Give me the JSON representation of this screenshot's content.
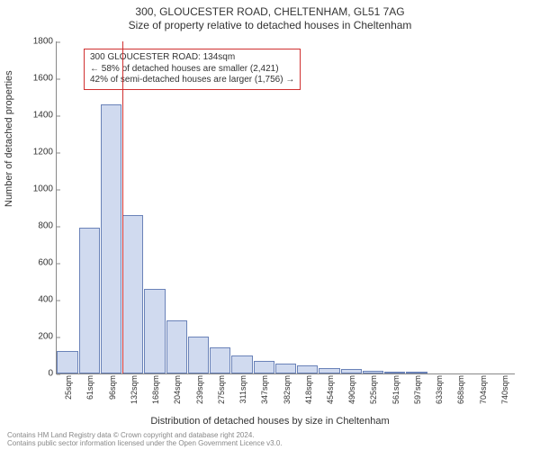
{
  "titles": {
    "main": "300, GLOUCESTER ROAD, CHELTENHAM, GL51 7AG",
    "sub": "Size of property relative to detached houses in Cheltenham"
  },
  "ylabel": "Number of detached properties",
  "xlabel": "Distribution of detached houses by size in Cheltenham",
  "chart": {
    "type": "histogram",
    "ylim": [
      0,
      1800
    ],
    "ytick_step": 200,
    "xcategories": [
      "25sqm",
      "61sqm",
      "96sqm",
      "132sqm",
      "168sqm",
      "204sqm",
      "239sqm",
      "275sqm",
      "311sqm",
      "347sqm",
      "382sqm",
      "418sqm",
      "454sqm",
      "490sqm",
      "525sqm",
      "561sqm",
      "597sqm",
      "633sqm",
      "668sqm",
      "704sqm",
      "740sqm"
    ],
    "values": [
      120,
      790,
      1460,
      860,
      460,
      290,
      200,
      140,
      100,
      70,
      55,
      45,
      30,
      25,
      15,
      12,
      10,
      0,
      0,
      0,
      0
    ],
    "bar_fill": "rgba(120,150,210,0.35)",
    "bar_border": "#6a82b8",
    "axis_color": "#888888",
    "background": "#ffffff",
    "marker_index": 3,
    "marker_color": "#d03030"
  },
  "annotation": {
    "line1": "300 GLOUCESTER ROAD: 134sqm",
    "line2": "← 58% of detached houses are smaller (2,421)",
    "line3": "42% of semi-detached houses are larger (1,756) →",
    "border_color": "#d03030",
    "fontsize": 10
  },
  "footer": {
    "line1": "Contains HM Land Registry data © Crown copyright and database right 2024.",
    "line2": "Contains public sector information licensed under the Open Government Licence v3.0."
  }
}
